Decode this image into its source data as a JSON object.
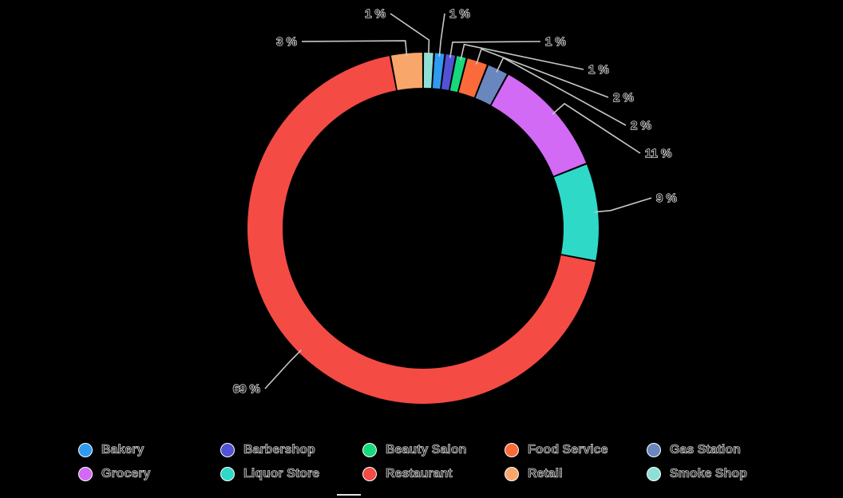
{
  "chart_data": {
    "type": "pie",
    "donut": true,
    "title": "",
    "legend_position": "bottom",
    "categories": [
      "Bakery",
      "Barbershop",
      "Beauty Salon",
      "Food Service",
      "Gas Station",
      "Grocery",
      "Liquor Store",
      "Restaurant",
      "Retail",
      "Smoke Shop"
    ],
    "values": [
      1,
      1,
      1,
      2,
      2,
      11,
      9,
      69,
      3,
      1
    ],
    "labels": [
      "1 %",
      "1 %",
      "1 %",
      "2 %",
      "2 %",
      "11 %",
      "9 %",
      "69 %",
      "3 %",
      "1 %"
    ],
    "colors": [
      "#2e9bf0",
      "#5152d6",
      "#16d97b",
      "#fa6a3a",
      "#6a86be",
      "#d36af5",
      "#2ed9c8",
      "#f44b45",
      "#f9a66a",
      "#8ee0d6"
    ]
  }
}
